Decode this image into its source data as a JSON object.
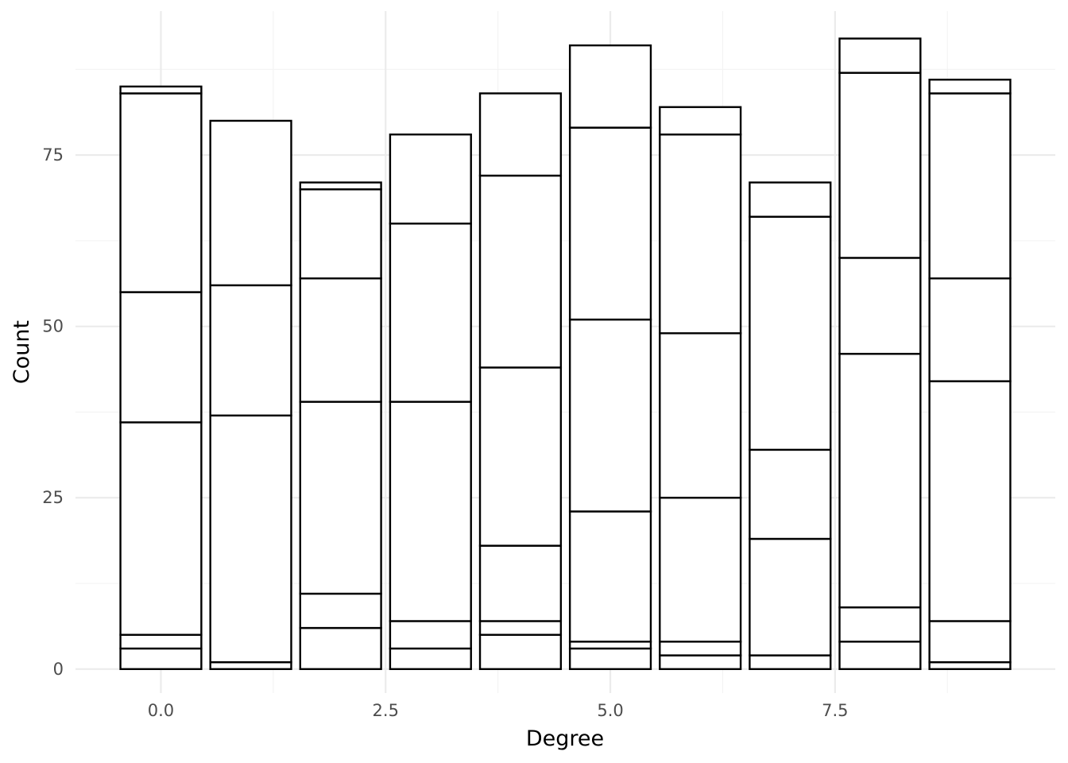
{
  "chart_data": {
    "type": "bar",
    "stacked": true,
    "xlabel": "Degree",
    "ylabel": "Count",
    "xlim": [
      -0.95,
      9.95
    ],
    "ylim": [
      -3.5,
      96
    ],
    "x_ticks": [
      0.0,
      2.5,
      5.0,
      7.5
    ],
    "x_tick_labels": [
      "0.0",
      "2.5",
      "5.0",
      "7.5"
    ],
    "y_ticks": [
      0,
      25,
      50,
      75
    ],
    "y_tick_labels": [
      "0",
      "25",
      "50",
      "75"
    ],
    "grid": true,
    "legend": "none",
    "bar_width": 0.9,
    "bars": [
      {
        "x": 0,
        "boundaries": [
          3,
          5,
          36,
          55,
          84,
          85
        ]
      },
      {
        "x": 1,
        "boundaries": [
          1,
          37,
          56,
          80
        ]
      },
      {
        "x": 2,
        "boundaries": [
          6,
          11,
          39,
          57,
          70,
          71
        ]
      },
      {
        "x": 3,
        "boundaries": [
          3,
          7,
          39,
          65,
          78
        ]
      },
      {
        "x": 4,
        "boundaries": [
          5,
          7,
          18,
          44,
          72,
          84
        ]
      },
      {
        "x": 5,
        "boundaries": [
          3,
          4,
          23,
          51,
          79,
          91
        ]
      },
      {
        "x": 6,
        "boundaries": [
          2,
          4,
          25,
          49,
          78,
          82
        ]
      },
      {
        "x": 7,
        "boundaries": [
          2,
          19,
          32,
          66,
          71
        ]
      },
      {
        "x": 8,
        "boundaries": [
          4,
          9,
          46,
          60,
          87,
          92
        ]
      },
      {
        "x": 9,
        "boundaries": [
          1,
          7,
          42,
          57,
          84,
          86
        ]
      }
    ]
  }
}
